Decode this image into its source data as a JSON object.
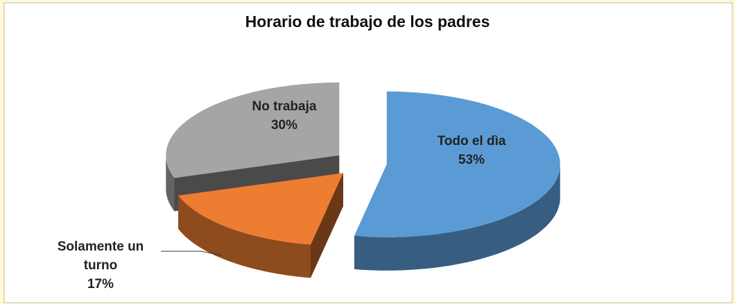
{
  "chart_data": {
    "type": "pie",
    "title": "Horario de trabajo de los padres",
    "categories": [
      "Todo el dìa",
      "Solamente un turno",
      "No trabaja"
    ],
    "values": [
      53,
      17,
      30
    ],
    "value_labels": [
      "53%",
      "17%",
      "30%"
    ],
    "colors": [
      "#5b9bd5",
      "#ed7d31",
      "#a5a5a5"
    ]
  }
}
